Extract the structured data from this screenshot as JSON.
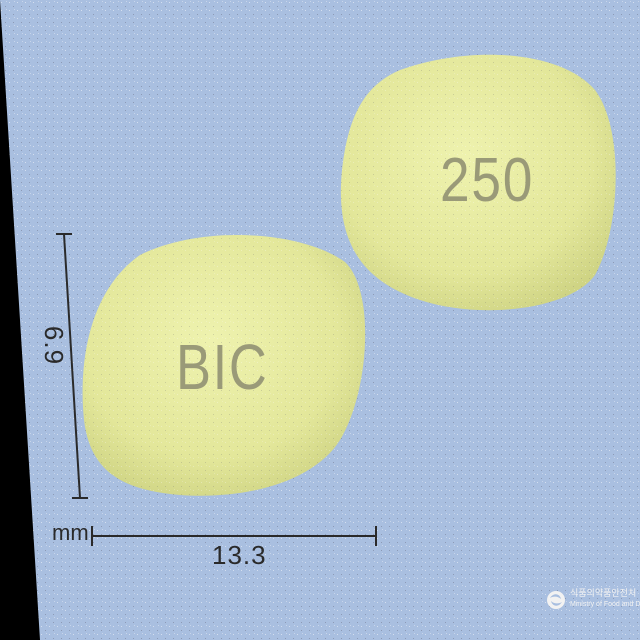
{
  "scene": {
    "background_color": "#a9bfe0",
    "tablet_color": "#e6ea9e",
    "imprint_color": "#9a9a78"
  },
  "tablets": [
    {
      "side": "front",
      "imprint": "BIC"
    },
    {
      "side": "back",
      "imprint": "250"
    }
  ],
  "dimensions": {
    "height_label": "6.9",
    "width_label": "13.3",
    "unit": "mm"
  },
  "watermark": {
    "icon": "ministry-emblem-icon",
    "line1": "식품의약품안전처",
    "line2": "Ministry of Food and Drug Safety"
  }
}
